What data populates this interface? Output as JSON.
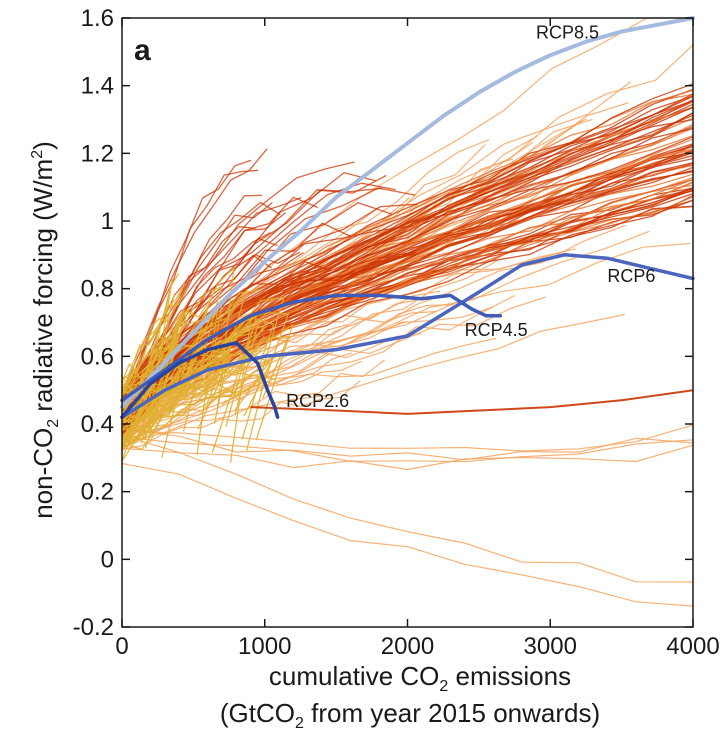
{
  "chart_data": {
    "type": "line",
    "panel_label": "a",
    "xlabel": {
      "line1": "cumulative CO",
      "sub1": "2",
      "line1_rest": " emissions",
      "line2": "(GtCO",
      "sub2": "2",
      "line2_rest": " from year 2015 onwards)"
    },
    "ylabel": {
      "pre": "non-CO",
      "sub": "2",
      "mid": " radiative forcing (W/m",
      "sup": "2",
      "post": ")"
    },
    "xlim": [
      0,
      4000
    ],
    "ylim": [
      -0.2,
      1.6
    ],
    "x_ticks": [
      0,
      1000,
      2000,
      3000,
      4000
    ],
    "x_tick_labels": [
      "0",
      "1000",
      "2000",
      "3000",
      "4000"
    ],
    "y_ticks": [
      -0.2,
      0,
      0.2,
      0.4,
      0.6,
      0.8,
      1,
      1.2,
      1.4,
      1.6
    ],
    "y_tick_labels": [
      "-0.2",
      "0",
      "0.2",
      "0.4",
      "0.6",
      "0.8",
      "1",
      "1.2",
      "1.4",
      "1.6"
    ],
    "colors": {
      "light_orange": "#f4a460",
      "orange": "#e8732c",
      "red": "#cc3300",
      "yellow": "#e0b030",
      "rcp85": "#a4badf",
      "rcp6": "#4a66c0",
      "rcp45": "#3f5cb8",
      "rcp26": "#2b44a0"
    },
    "series": [
      {
        "name": "RCP8.5",
        "color": "#a4badf",
        "x": [
          0,
          250,
          500,
          750,
          1000,
          1250,
          1500,
          1750,
          2000,
          2250,
          2500,
          2750,
          3000,
          3250,
          3500,
          3750,
          4000
        ],
        "y": [
          0.45,
          0.56,
          0.67,
          0.78,
          0.88,
          0.97,
          1.07,
          1.15,
          1.23,
          1.31,
          1.38,
          1.44,
          1.49,
          1.53,
          1.56,
          1.58,
          1.6
        ]
      },
      {
        "name": "RCP6",
        "color": "#4a66c0",
        "x": [
          0,
          300,
          600,
          1000,
          1500,
          2000,
          2500,
          2800,
          3100,
          3400,
          3700,
          4000
        ],
        "y": [
          0.42,
          0.5,
          0.56,
          0.6,
          0.62,
          0.66,
          0.79,
          0.87,
          0.9,
          0.89,
          0.86,
          0.83
        ]
      },
      {
        "name": "RCP4.5",
        "color": "#3f5cb8",
        "x": [
          0,
          300,
          600,
          900,
          1200,
          1500,
          1800,
          2100,
          2300,
          2450,
          2550,
          2650
        ],
        "y": [
          0.47,
          0.56,
          0.65,
          0.72,
          0.76,
          0.78,
          0.78,
          0.77,
          0.78,
          0.74,
          0.72,
          0.72
        ]
      },
      {
        "name": "RCP2.6",
        "color": "#2b44a0",
        "x": [
          0,
          200,
          400,
          600,
          800,
          950,
          1020,
          1070,
          1090
        ],
        "y": [
          0.42,
          0.52,
          0.58,
          0.62,
          0.64,
          0.58,
          0.5,
          0.45,
          0.42
        ]
      }
    ],
    "labels": [
      {
        "text": "RCP8.5",
        "x": 2900,
        "y": 1.54
      },
      {
        "text": "RCP6",
        "x": 3400,
        "y": 0.82
      },
      {
        "text": "RCP4.5",
        "x": 2400,
        "y": 0.66
      },
      {
        "text": "RCP2.6",
        "x": 1150,
        "y": 0.45
      }
    ]
  }
}
